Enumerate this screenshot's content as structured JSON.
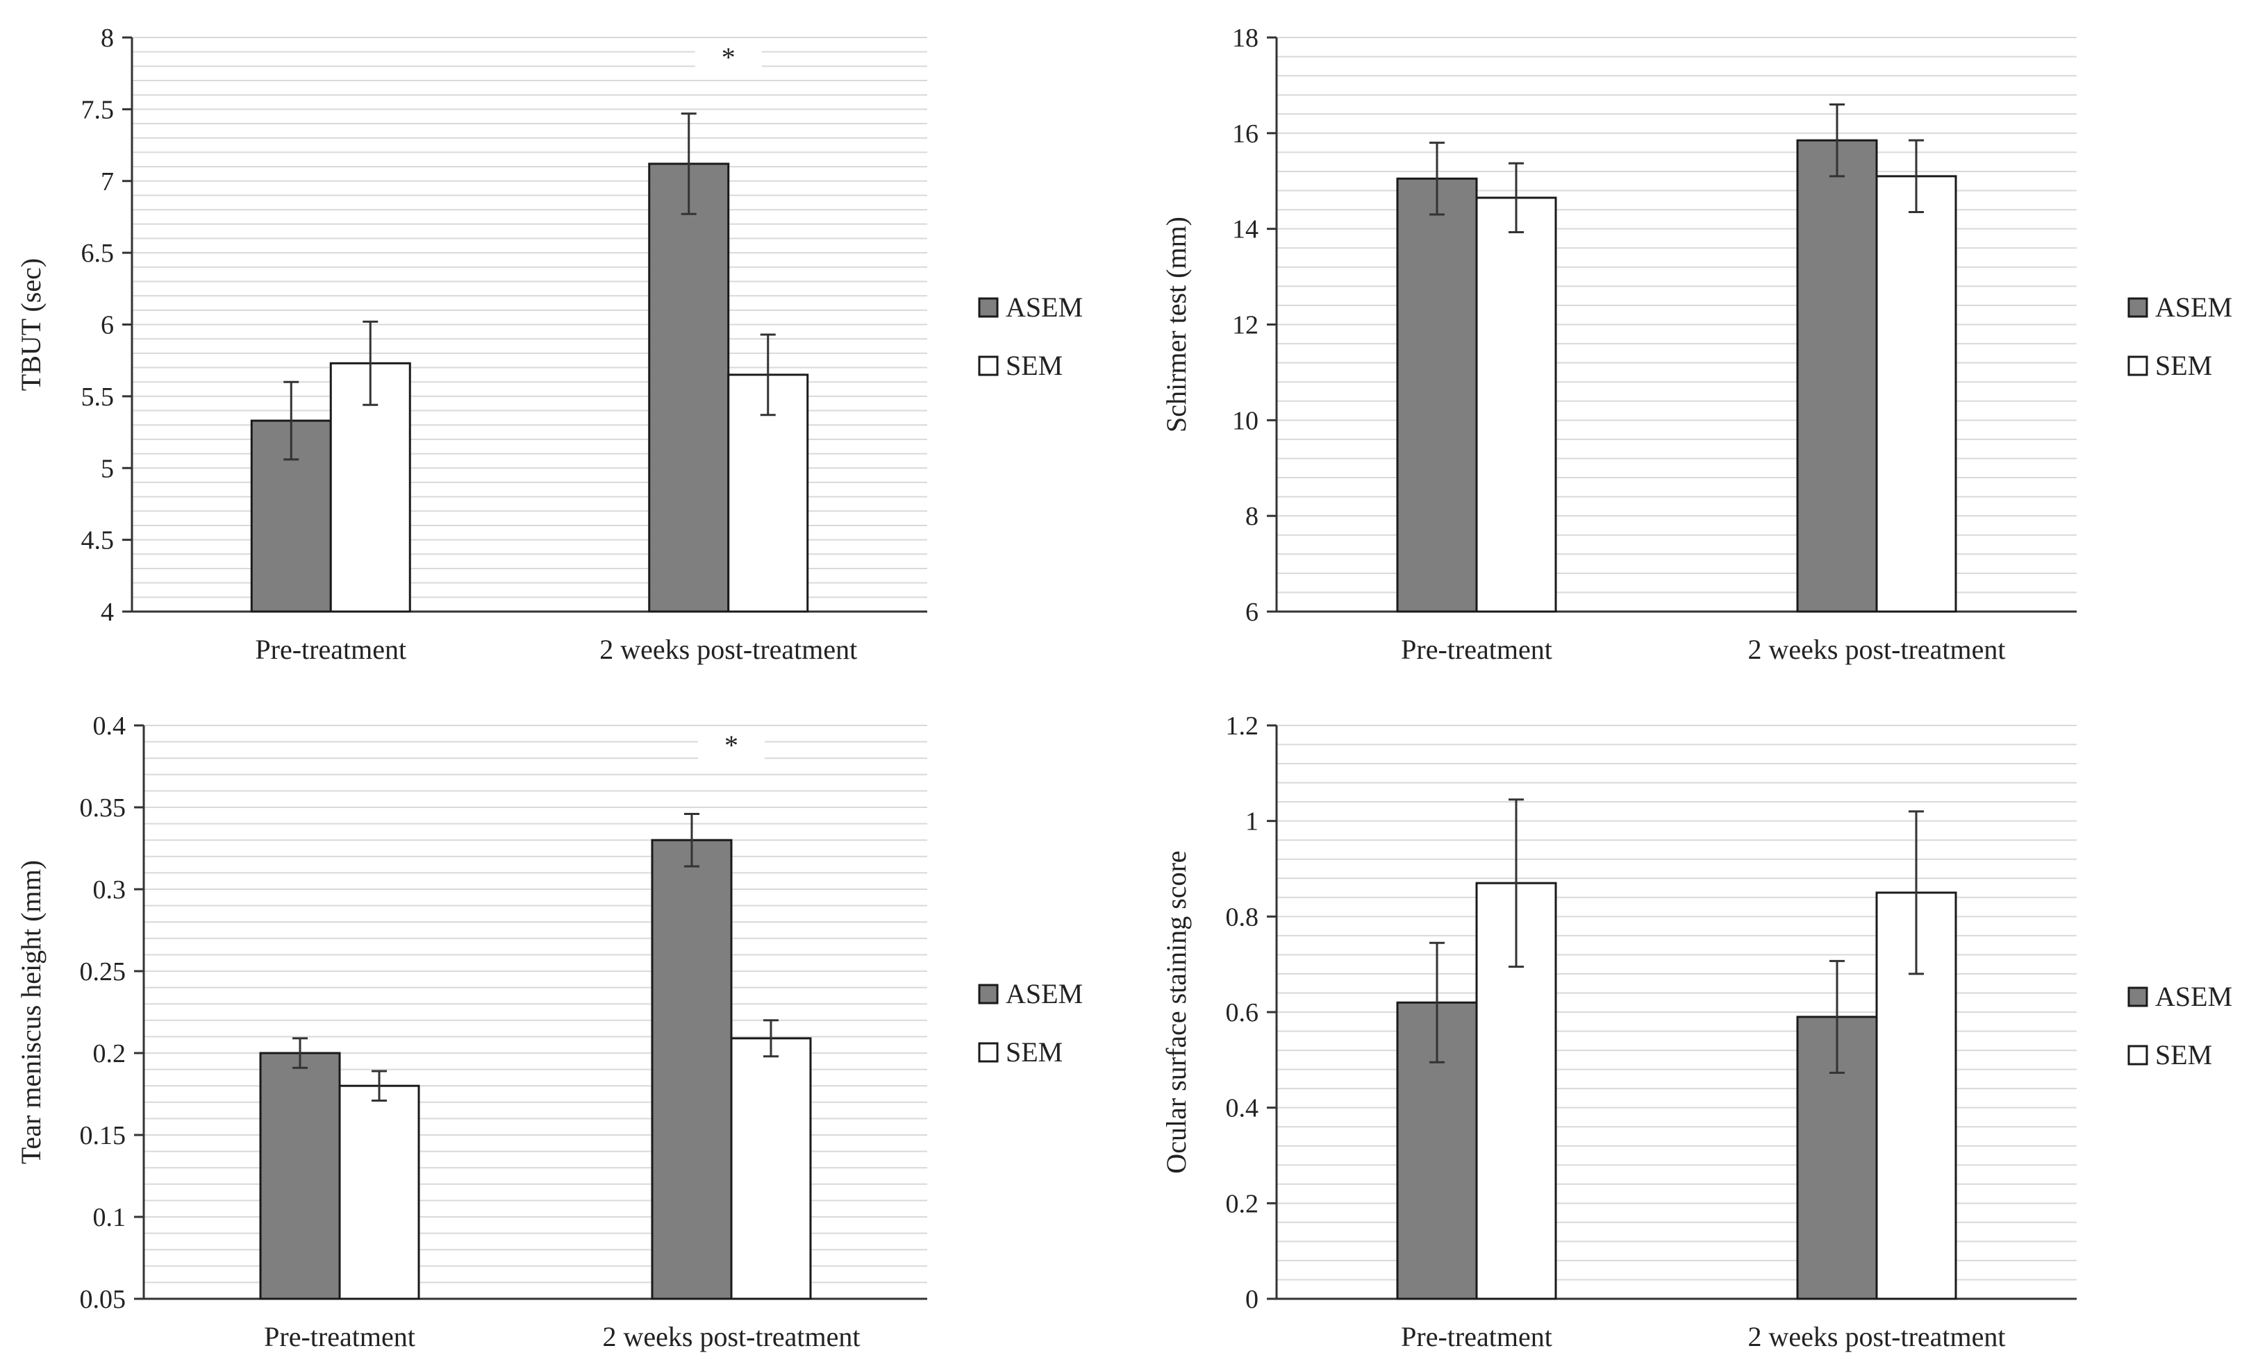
{
  "legend": {
    "asem": "ASEM",
    "sem": "SEM"
  },
  "colors": {
    "asem": "#7f7f7f",
    "sem": "#ffffff",
    "bar_stroke": "#1a1a1a",
    "grid": "#d9d9d9",
    "axis": "#333333",
    "error": "#333333"
  },
  "chart_data": [
    {
      "type": "bar",
      "title": "",
      "xlabel": "",
      "ylabel": "TBUT (sec)",
      "categories": [
        "Pre-treatment",
        "2 weeks post-treatment"
      ],
      "ylim": [
        4,
        8
      ],
      "yticks": [
        "4",
        "4.5",
        "5",
        "5.5",
        "6",
        "6.5",
        "7",
        "7.5",
        "8"
      ],
      "minor_step": 0.1,
      "series": [
        {
          "name": "ASEM",
          "values": [
            5.33,
            7.12
          ],
          "errors": [
            0.27,
            0.35
          ]
        },
        {
          "name": "SEM",
          "values": [
            5.73,
            5.65
          ],
          "errors": [
            0.29,
            0.28
          ]
        }
      ],
      "significance": [
        "",
        "*"
      ],
      "legend_position": "right"
    },
    {
      "type": "bar",
      "title": "",
      "xlabel": "",
      "ylabel": "Schirmer test (mm)",
      "categories": [
        "Pre-treatment",
        "2 weeks post-treatment"
      ],
      "ylim": [
        6,
        18
      ],
      "yticks": [
        "6",
        "8",
        "10",
        "12",
        "14",
        "16",
        "18"
      ],
      "minor_step": 0.4,
      "series": [
        {
          "name": "ASEM",
          "values": [
            15.05,
            15.85
          ],
          "errors": [
            0.75,
            0.75
          ]
        },
        {
          "name": "SEM",
          "values": [
            14.65,
            15.1
          ],
          "errors": [
            0.72,
            0.75
          ]
        }
      ],
      "significance": [
        "",
        ""
      ],
      "legend_position": "right"
    },
    {
      "type": "bar",
      "title": "",
      "xlabel": "",
      "ylabel": "Tear meniscus height (mm)",
      "categories": [
        "Pre-treatment",
        "2 weeks post-treatment"
      ],
      "ylim": [
        0.05,
        0.4
      ],
      "yticks": [
        "0.05",
        "0.1",
        "0.15",
        "0.2",
        "0.25",
        "0.3",
        "0.35",
        "0.4"
      ],
      "minor_step": 0.01,
      "series": [
        {
          "name": "ASEM",
          "values": [
            0.2,
            0.33
          ],
          "errors": [
            0.009,
            0.016
          ]
        },
        {
          "name": "SEM",
          "values": [
            0.18,
            0.209
          ],
          "errors": [
            0.009,
            0.011
          ]
        }
      ],
      "significance": [
        "",
        "*"
      ],
      "legend_position": "right"
    },
    {
      "type": "bar",
      "title": "",
      "xlabel": "",
      "ylabel": "Ocular surface staining score",
      "categories": [
        "Pre-treatment",
        "2 weeks post-treatment"
      ],
      "ylim": [
        0,
        1.2
      ],
      "yticks": [
        "0",
        "0.2",
        "0.4",
        "0.6",
        "0.8",
        "1",
        "1.2"
      ],
      "minor_step": 0.04,
      "series": [
        {
          "name": "ASEM",
          "values": [
            0.62,
            0.59
          ],
          "errors": [
            0.125,
            0.117
          ]
        },
        {
          "name": "SEM",
          "values": [
            0.87,
            0.85
          ],
          "errors": [
            0.175,
            0.17
          ]
        }
      ],
      "significance": [
        "",
        ""
      ],
      "legend_position": "right"
    }
  ]
}
